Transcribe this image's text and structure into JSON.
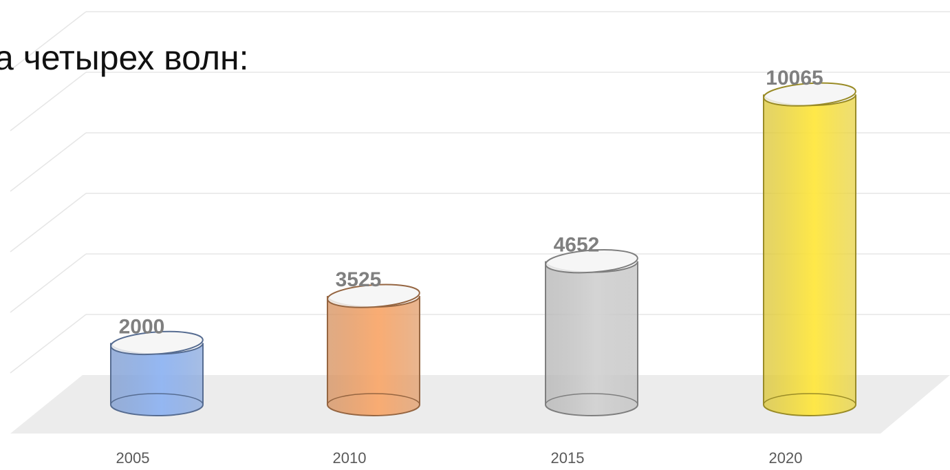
{
  "chart_data": {
    "type": "cylinder",
    "title": "а четырех волн:",
    "categories": [
      "2005",
      "2010",
      "2015",
      "2020"
    ],
    "values": [
      2000,
      3525,
      4652,
      10065
    ],
    "colors": [
      "#8fb4f2",
      "#f9a86c",
      "#d2d2d2",
      "#ffe73f"
    ],
    "ylim": [
      0,
      12000
    ],
    "yticks": [
      0,
      2000,
      4000,
      6000,
      8000,
      10000,
      12000
    ],
    "grid": true
  }
}
